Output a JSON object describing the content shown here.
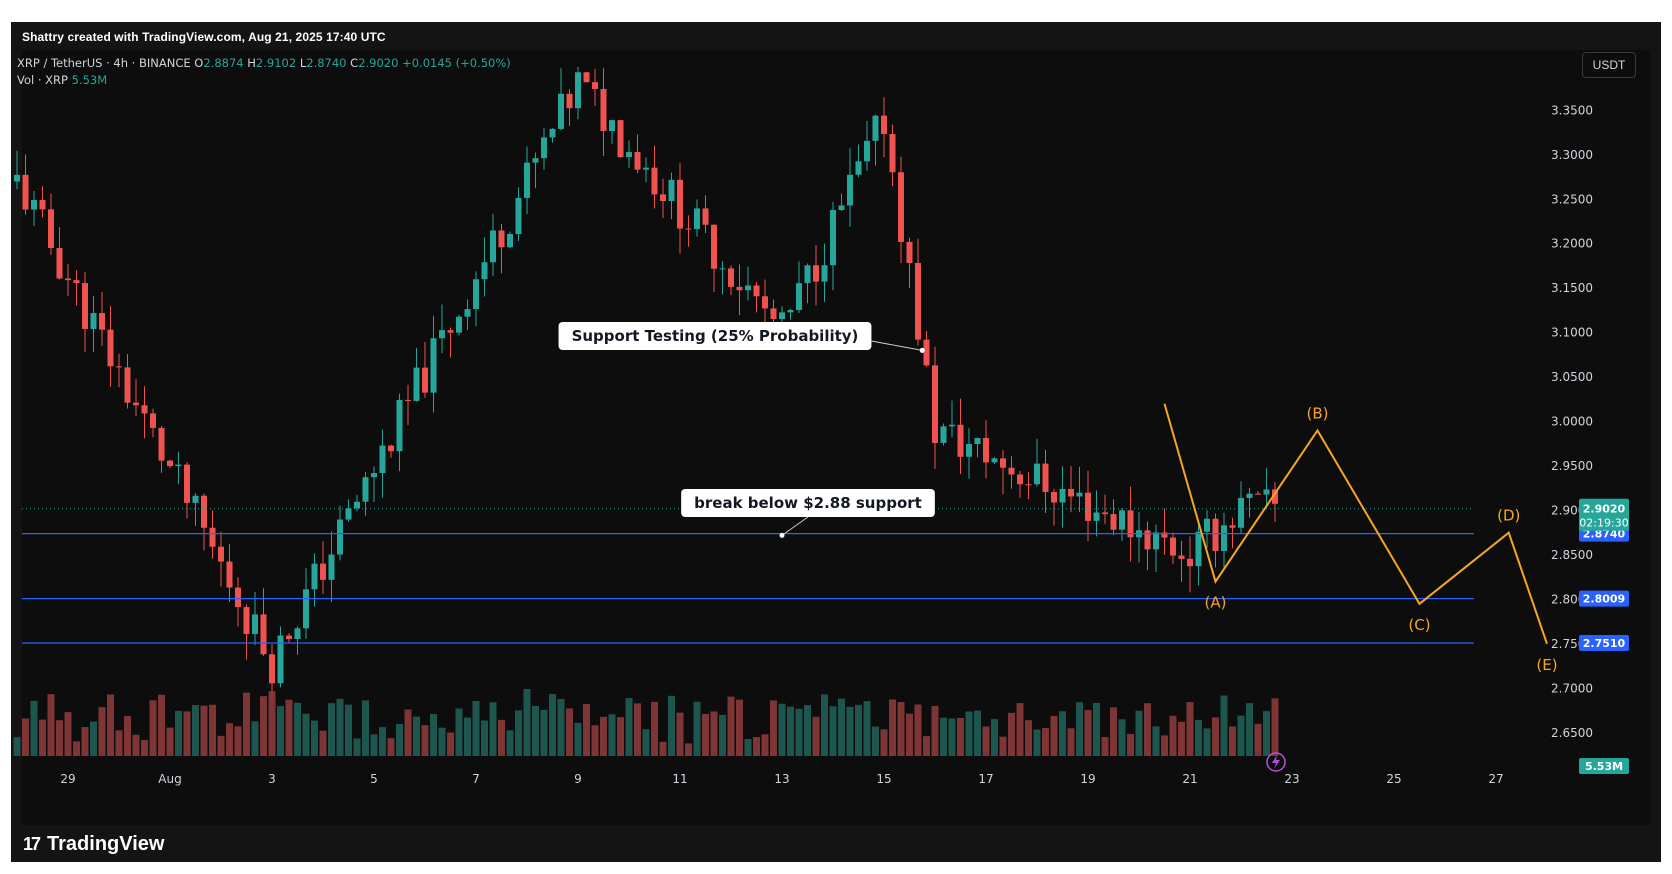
{
  "header": {
    "credit": "Shattry created with TradingView.com, Aug 21, 2025 17:40 UTC"
  },
  "legend": {
    "symbol": "XRP / TetherUS · 4h · BINANCE",
    "o_label": "O",
    "o_value": "2.8874",
    "h_label": "H",
    "h_value": "2.9102",
    "l_label": "L",
    "l_value": "2.8740",
    "c_label": "C",
    "c_value": "2.9020",
    "change": "+0.0145 (+0.50%)",
    "vol_label": "Vol · XRP",
    "vol_value": "5.53M"
  },
  "currency_button": "USDT",
  "footer": {
    "brand": "TradingView",
    "brand_mark": "17"
  },
  "colors": {
    "up": "#26a69a",
    "down": "#ef5350",
    "vol_up": "#1f5e57",
    "vol_down": "#8b3a3a",
    "level": "#2962ff",
    "wave": "#f5a623",
    "price_tag": "#26a69a"
  },
  "chart_data": {
    "type": "candlestick",
    "symbol": "XRP / TetherUS",
    "interval": "4h",
    "exchange": "BINANCE",
    "y_axis": {
      "ticks": [
        "3.3500",
        "3.3000",
        "3.2500",
        "3.2000",
        "3.1500",
        "3.1000",
        "3.0500",
        "3.0000",
        "2.9500",
        "2.9000",
        "2.8500",
        "2.8000",
        "2.7500",
        "2.7000",
        "2.6500"
      ],
      "range": [
        2.625,
        3.41
      ]
    },
    "x_axis": {
      "ticks": [
        "29",
        "Aug",
        "3",
        "5",
        "7",
        "9",
        "11",
        "13",
        "15",
        "17",
        "19",
        "21",
        "23",
        "25",
        "27"
      ],
      "range_days": [
        "Jul 28",
        "Aug 28"
      ]
    },
    "candles_summary": {
      "start": "Jul 28",
      "end": "Aug 21 17:40 UTC",
      "key_points": [
        {
          "date": "Jul 28",
          "price": 3.27
        },
        {
          "date": "Aug 2",
          "price": 2.73,
          "label": "swing low"
        },
        {
          "date": "Aug 8",
          "price": 3.38,
          "label": "swing high"
        },
        {
          "date": "Aug 12",
          "price": 3.1
        },
        {
          "date": "Aug 14",
          "price": 3.34
        },
        {
          "date": "Aug 15",
          "price": 2.99
        },
        {
          "date": "Aug 20",
          "price": 2.85
        },
        {
          "date": "Aug 21",
          "price": 2.902
        }
      ]
    },
    "price_levels": [
      {
        "value": 2.874,
        "label": "2.8740"
      },
      {
        "value": 2.8009,
        "label": "2.8009"
      },
      {
        "value": 2.751,
        "label": "2.7510"
      }
    ],
    "current_price": {
      "value": 2.902,
      "label": "2.9020",
      "countdown": "02:19:30"
    },
    "volume_current": {
      "value": "5.53M"
    },
    "projection": {
      "name": "wave",
      "points": [
        {
          "label": "",
          "date": "Aug 19 12:00",
          "price": 3.02
        },
        {
          "label": "(A)",
          "date": "Aug 20 12:00",
          "price": 2.82
        },
        {
          "label": "(B)",
          "date": "Aug 22 12:00",
          "price": 2.99
        },
        {
          "label": "(C)",
          "date": "Aug 24 12:00",
          "price": 2.795
        },
        {
          "label": "(D)",
          "date": "Aug 26 06:00",
          "price": 2.875
        },
        {
          "label": "(E)",
          "date": "Aug 27 00:00",
          "price": 2.75
        }
      ]
    },
    "annotations": [
      {
        "text": "Support Testing (25% Probability)",
        "target_date": "Aug 14 18:00",
        "target_price": 3.08
      },
      {
        "text": "break below $2.88 support",
        "target_date": "Aug 12",
        "target_price": 2.872
      }
    ]
  }
}
